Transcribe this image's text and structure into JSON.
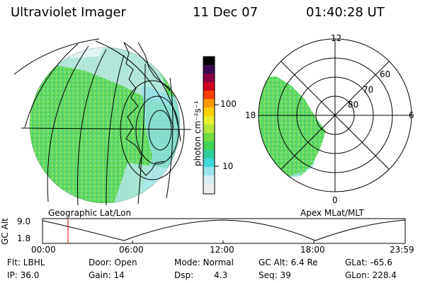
{
  "header": {
    "instrument": "Ultraviolet Imager",
    "date": "11 Dec 07",
    "time": "01:40:28 UT"
  },
  "colorbar": {
    "unit_label": "photon cm⁻²s⁻¹",
    "ticks": [
      "100",
      "10"
    ]
  },
  "geo_map": {
    "caption": "Geographic Lat/Lon"
  },
  "polar_map": {
    "caption": "Apex MLat/MLT",
    "mlt_labels": [
      "12",
      "18",
      "6",
      "0"
    ],
    "lat_labels": [
      "60",
      "70",
      "80"
    ]
  },
  "orbit": {
    "axis_title": "GC Alt",
    "y_ticks": [
      "9.0",
      "1.8"
    ],
    "x_ticks": [
      "00:00",
      "06:00",
      "12:00",
      "18:00",
      "23:59"
    ],
    "marker_time": "01:40"
  },
  "info": {
    "filter": "Flt: LBHL",
    "ip": "IP: 36.0",
    "door": "Door: Open",
    "gain": "Gain: 14",
    "mode": "Mode: Normal",
    "dsp_label": "Dsp:",
    "dsp_value": "4.3",
    "gc_alt": "GC Alt: 6.4 Re",
    "seq": "Seq: 39",
    "glat": "GLat: -65.6",
    "glon": "GLon: 228.4"
  },
  "colors": {
    "background": "#ffffff",
    "aurora_main": "#5fd85a",
    "aurora_edge": "#7ad8e8",
    "marker": "#cc0000"
  }
}
